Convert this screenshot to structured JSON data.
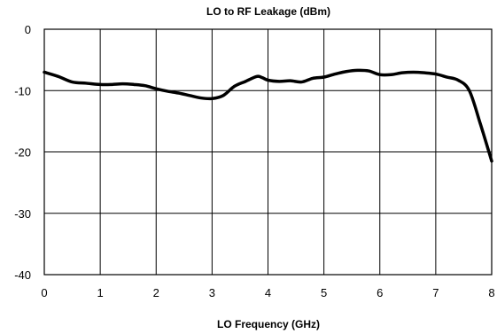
{
  "chart_data": {
    "type": "line",
    "title": "LO to RF Leakage (dBm)",
    "xlabel": "LO Frequency (GHz)",
    "ylabel": "",
    "xlim": [
      0,
      8
    ],
    "ylim": [
      -40,
      0
    ],
    "x_ticks": [
      0,
      1,
      2,
      3,
      4,
      5,
      6,
      7,
      8
    ],
    "y_ticks": [
      0,
      -10,
      -20,
      -30,
      -40
    ],
    "x_tick_labels": [
      "0",
      "1",
      "2",
      "3",
      "4",
      "5",
      "6",
      "7",
      "8"
    ],
    "y_tick_labels": [
      "0",
      "-10",
      "-20",
      "-30",
      "-40"
    ],
    "grid": true,
    "line_color": "#000000",
    "series": [
      {
        "x": [
          0,
          0.25,
          0.5,
          0.75,
          1.0,
          1.2,
          1.4,
          1.6,
          1.8,
          2.0,
          2.2,
          2.4,
          2.6,
          2.8,
          3.0,
          3.2,
          3.4,
          3.6,
          3.8,
          3.9,
          4.0,
          4.2,
          4.4,
          4.6,
          4.8,
          5.0,
          5.2,
          5.4,
          5.6,
          5.8,
          6.0,
          6.2,
          6.4,
          6.6,
          6.8,
          7.0,
          7.2,
          7.4,
          7.6,
          7.8,
          8.0
        ],
        "y": [
          -7.0,
          -7.7,
          -8.6,
          -8.8,
          -9.0,
          -9.0,
          -8.9,
          -9.0,
          -9.2,
          -9.7,
          -10.1,
          -10.4,
          -10.8,
          -11.2,
          -11.3,
          -10.8,
          -9.3,
          -8.5,
          -7.7,
          -7.9,
          -8.3,
          -8.5,
          -8.4,
          -8.6,
          -8.0,
          -7.8,
          -7.3,
          -6.9,
          -6.7,
          -6.8,
          -7.4,
          -7.4,
          -7.1,
          -7.0,
          -7.1,
          -7.3,
          -7.8,
          -8.3,
          -10.0,
          -15.5,
          -21.5
        ]
      }
    ]
  }
}
